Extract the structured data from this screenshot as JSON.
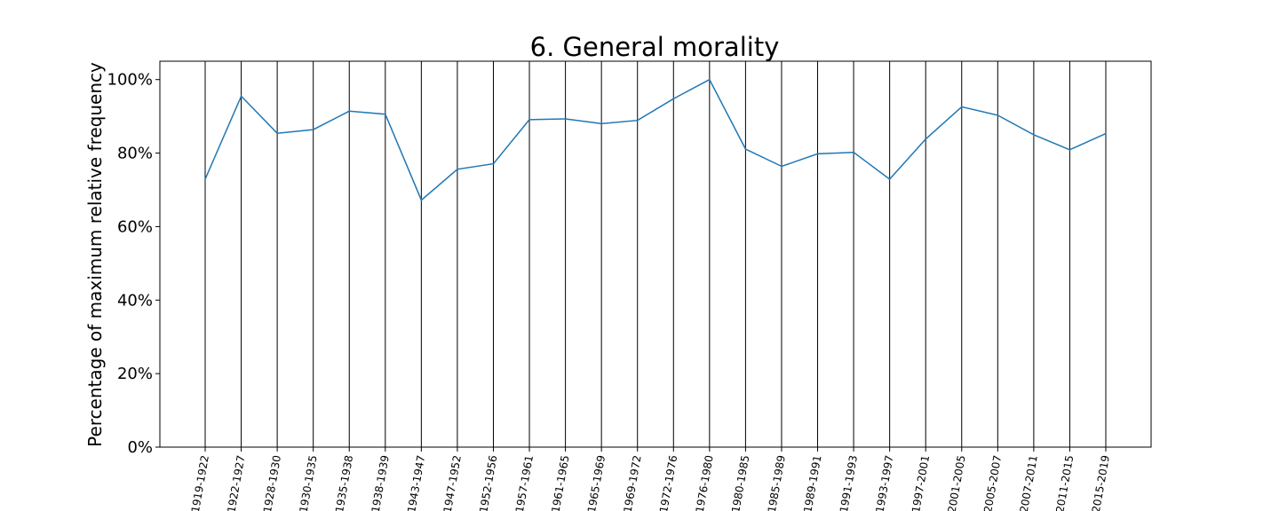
{
  "chart_data": {
    "type": "line",
    "title": "6. General morality",
    "xlabel": "",
    "ylabel": "Percentage of maximum relative frequency",
    "categories": [
      "1919-1922",
      "1922-1927",
      "1928-1930",
      "1930-1935",
      "1935-1938",
      "1938-1939",
      "1943-1947",
      "1947-1952",
      "1952-1956",
      "1957-1961",
      "1961-1965",
      "1965-1969",
      "1969-1972",
      "1972-1976",
      "1976-1980",
      "1980-1985",
      "1985-1989",
      "1989-1991",
      "1991-1993",
      "1993-1997",
      "1997-2001",
      "2001-2005",
      "2005-2007",
      "2007-2011",
      "2011-2015",
      "2015-2019"
    ],
    "series": [
      {
        "color": "#1f77b4",
        "values": [
          72.9,
          95.5,
          85.4,
          86.4,
          91.4,
          90.6,
          67.2,
          75.6,
          77.1,
          89.1,
          89.3,
          88.0,
          88.9,
          94.8,
          100.0,
          81.1,
          76.4,
          79.8,
          80.2,
          72.9,
          83.8,
          92.6,
          90.3,
          85.0,
          80.9,
          85.3
        ]
      }
    ],
    "ylim": [
      0,
      105
    ],
    "yticks": [
      0,
      20,
      40,
      60,
      80,
      100
    ],
    "ytick_labels": [
      "0%",
      "20%",
      "40%",
      "60%",
      "80%",
      "100%"
    ],
    "vertical_lines_at_categories": true,
    "grid": false,
    "legend": "none"
  }
}
